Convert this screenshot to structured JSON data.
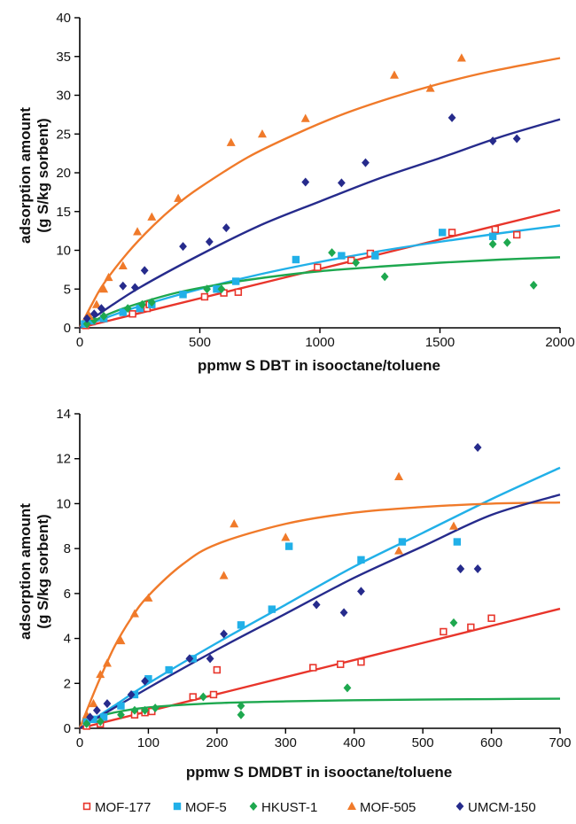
{
  "series_styles": [
    {
      "name": "MOF-177",
      "marker": "square-open",
      "color": "#e8352b"
    },
    {
      "name": "MOF-5",
      "marker": "square",
      "color": "#21b0e8"
    },
    {
      "name": "HKUST-1",
      "marker": "diamond",
      "color": "#1ea84f"
    },
    {
      "name": "MOF-505",
      "marker": "triangle",
      "color": "#f07a2a"
    },
    {
      "name": "UMCM-150",
      "marker": "diamond",
      "color": "#262b8c"
    }
  ],
  "chart_data": [
    {
      "type": "scatter",
      "title": "",
      "xlabel": "ppmw S DBT in isooctane/toluene",
      "ylabel": [
        "adsorption amount",
        "(g S/kg sorbent)"
      ],
      "xlim": [
        0,
        2000
      ],
      "ylim": [
        0,
        40
      ],
      "xticks": [
        0,
        500,
        1000,
        1500,
        2000
      ],
      "yticks": [
        0,
        5,
        10,
        15,
        20,
        25,
        30,
        35,
        40
      ],
      "grid": false,
      "series": [
        {
          "name": "MOF-177",
          "points": [
            [
              25,
              0.3
            ],
            [
              50,
              0.8
            ],
            [
              100,
              1.2
            ],
            [
              220,
              1.8
            ],
            [
              280,
              2.5
            ],
            [
              290,
              3
            ],
            [
              520,
              4
            ],
            [
              600,
              4.5
            ],
            [
              660,
              4.6
            ],
            [
              990,
              7.8
            ],
            [
              1130,
              8.7
            ],
            [
              1210,
              9.6
            ],
            [
              1550,
              12.3
            ],
            [
              1730,
              12.7
            ],
            [
              1820,
              12
            ]
          ],
          "fit": [
            [
              0,
              0
            ],
            [
              500,
              3.8
            ],
            [
              1000,
              7.6
            ],
            [
              1500,
              11.4
            ],
            [
              2000,
              15.2
            ]
          ]
        },
        {
          "name": "MOF-5",
          "points": [
            [
              20,
              0.5
            ],
            [
              50,
              0.9
            ],
            [
              100,
              1.2
            ],
            [
              180,
              2
            ],
            [
              250,
              2.5
            ],
            [
              300,
              3
            ],
            [
              430,
              4.3
            ],
            [
              570,
              5
            ],
            [
              650,
              6
            ],
            [
              900,
              8.8
            ],
            [
              1090,
              9.3
            ],
            [
              1230,
              9.3
            ],
            [
              1510,
              12.3
            ],
            [
              1720,
              11.8
            ]
          ],
          "fit": [
            [
              0,
              0
            ],
            [
              100,
              1.2
            ],
            [
              250,
              2.8
            ],
            [
              500,
              5
            ],
            [
              750,
              6.9
            ],
            [
              1000,
              8.5
            ],
            [
              1250,
              9.9
            ],
            [
              1500,
              11.1
            ],
            [
              1750,
              12.2
            ],
            [
              2000,
              13.2
            ]
          ]
        },
        {
          "name": "HKUST-1",
          "points": [
            [
              30,
              0.5
            ],
            [
              60,
              1
            ],
            [
              100,
              1.5
            ],
            [
              200,
              2.5
            ],
            [
              260,
              3
            ],
            [
              300,
              3.3
            ],
            [
              530,
              5
            ],
            [
              590,
              5
            ],
            [
              1050,
              9.7
            ],
            [
              1150,
              8.4
            ],
            [
              1270,
              6.6
            ],
            [
              1720,
              10.8
            ],
            [
              1780,
              11
            ],
            [
              1890,
              5.5
            ]
          ],
          "fit": [
            [
              0,
              0
            ],
            [
              100,
              1.5
            ],
            [
              200,
              2.7
            ],
            [
              400,
              4.5
            ],
            [
              600,
              5.7
            ],
            [
              800,
              6.6
            ],
            [
              1000,
              7.3
            ],
            [
              1250,
              7.9
            ],
            [
              1500,
              8.4
            ],
            [
              1750,
              8.8
            ],
            [
              2000,
              9.1
            ]
          ]
        },
        {
          "name": "MOF-505",
          "points": [
            [
              40,
              1.5
            ],
            [
              70,
              3
            ],
            [
              100,
              5
            ],
            [
              120,
              6.5
            ],
            [
              180,
              8
            ],
            [
              240,
              12.4
            ],
            [
              300,
              14.3
            ],
            [
              410,
              16.7
            ],
            [
              630,
              23.9
            ],
            [
              760,
              25
            ],
            [
              940,
              27
            ],
            [
              1310,
              32.6
            ],
            [
              1460,
              30.9
            ],
            [
              1590,
              34.8
            ]
          ],
          "fit": [
            [
              0,
              0
            ],
            [
              50,
              3
            ],
            [
              100,
              5.7
            ],
            [
              200,
              9.7
            ],
            [
              300,
              13
            ],
            [
              400,
              15.8
            ],
            [
              500,
              18.1
            ],
            [
              700,
              22
            ],
            [
              900,
              25
            ],
            [
              1100,
              27.6
            ],
            [
              1300,
              29.7
            ],
            [
              1500,
              31.5
            ],
            [
              1700,
              33
            ],
            [
              2000,
              34.8
            ]
          ]
        },
        {
          "name": "UMCM-150",
          "points": [
            [
              30,
              1.2
            ],
            [
              60,
              1.8
            ],
            [
              90,
              2.5
            ],
            [
              180,
              5.4
            ],
            [
              230,
              5.2
            ],
            [
              270,
              7.4
            ],
            [
              430,
              10.5
            ],
            [
              540,
              11.1
            ],
            [
              610,
              12.9
            ],
            [
              940,
              18.8
            ],
            [
              1090,
              18.7
            ],
            [
              1190,
              21.3
            ],
            [
              1550,
              27.1
            ],
            [
              1720,
              24.1
            ],
            [
              1820,
              24.4
            ]
          ],
          "fit": [
            [
              0,
              0
            ],
            [
              100,
              2.2
            ],
            [
              250,
              5.2
            ],
            [
              500,
              9.4
            ],
            [
              750,
              13.2
            ],
            [
              1000,
              16.3
            ],
            [
              1250,
              19.3
            ],
            [
              1500,
              21.9
            ],
            [
              1750,
              24.6
            ],
            [
              2000,
              26.9
            ]
          ]
        }
      ]
    },
    {
      "type": "scatter",
      "title": "",
      "xlabel": "ppmw S DMDBT in isooctane/toluene",
      "ylabel": [
        "adsorption amount",
        "(g S/kg sorbent)"
      ],
      "xlim": [
        0,
        700
      ],
      "ylim": [
        0,
        14
      ],
      "xticks": [
        0,
        100,
        200,
        300,
        400,
        500,
        600,
        700
      ],
      "yticks": [
        0,
        2,
        4,
        6,
        8,
        10,
        12,
        14
      ],
      "grid": false,
      "series": [
        {
          "name": "MOF-177",
          "points": [
            [
              10,
              0.1
            ],
            [
              30,
              0.2
            ],
            [
              80,
              0.6
            ],
            [
              95,
              0.7
            ],
            [
              105,
              0.75
            ],
            [
              165,
              1.4
            ],
            [
              195,
              1.5
            ],
            [
              200,
              2.6
            ],
            [
              340,
              2.7
            ],
            [
              380,
              2.85
            ],
            [
              410,
              2.95
            ],
            [
              530,
              4.3
            ],
            [
              570,
              4.5
            ],
            [
              600,
              4.9
            ]
          ],
          "fit": [
            [
              0,
              0
            ],
            [
              100,
              0.76
            ],
            [
              200,
              1.52
            ],
            [
              300,
              2.28
            ],
            [
              400,
              3.04
            ],
            [
              500,
              3.8
            ],
            [
              600,
              4.56
            ],
            [
              700,
              5.32
            ]
          ]
        },
        {
          "name": "MOF-5",
          "points": [
            [
              10,
              0.3
            ],
            [
              20,
              0.4
            ],
            [
              35,
              0.5
            ],
            [
              60,
              1
            ],
            [
              80,
              1.5
            ],
            [
              100,
              2.2
            ],
            [
              130,
              2.6
            ],
            [
              165,
              3.1
            ],
            [
              235,
              4.6
            ],
            [
              280,
              5.3
            ],
            [
              305,
              8.1
            ],
            [
              410,
              7.5
            ],
            [
              470,
              8.3
            ],
            [
              550,
              8.3
            ]
          ],
          "fit": [
            [
              0,
              0
            ],
            [
              50,
              1
            ],
            [
              100,
              2
            ],
            [
              200,
              3.8
            ],
            [
              300,
              5.5
            ],
            [
              400,
              7.2
            ],
            [
              500,
              8.7
            ],
            [
              600,
              10.2
            ],
            [
              700,
              11.6
            ]
          ]
        },
        {
          "name": "HKUST-1",
          "points": [
            [
              10,
              0.2
            ],
            [
              30,
              0.3
            ],
            [
              60,
              0.6
            ],
            [
              80,
              0.8
            ],
            [
              95,
              0.8
            ],
            [
              110,
              0.9
            ],
            [
              180,
              1.4
            ],
            [
              235,
              0.6
            ],
            [
              235,
              1
            ],
            [
              390,
              1.8
            ],
            [
              545,
              4.7
            ]
          ],
          "fit": [
            [
              0,
              0
            ],
            [
              25,
              0.45
            ],
            [
              50,
              0.7
            ],
            [
              100,
              0.93
            ],
            [
              200,
              1.12
            ],
            [
              300,
              1.2
            ],
            [
              400,
              1.25
            ],
            [
              500,
              1.28
            ],
            [
              600,
              1.3
            ],
            [
              700,
              1.32
            ]
          ]
        },
        {
          "name": "MOF-505",
          "points": [
            [
              10,
              0.6
            ],
            [
              20,
              1.1
            ],
            [
              30,
              2.4
            ],
            [
              40,
              2.9
            ],
            [
              60,
              3.9
            ],
            [
              80,
              5.1
            ],
            [
              100,
              5.8
            ],
            [
              210,
              6.8
            ],
            [
              225,
              9.1
            ],
            [
              300,
              8.5
            ],
            [
              465,
              7.9
            ],
            [
              465,
              11.2
            ],
            [
              545,
              9
            ]
          ],
          "fit": [
            [
              0,
              0
            ],
            [
              25,
              1.9
            ],
            [
              50,
              3.6
            ],
            [
              75,
              4.9
            ],
            [
              100,
              5.9
            ],
            [
              150,
              7.3
            ],
            [
              200,
              8.2
            ],
            [
              300,
              9.1
            ],
            [
              400,
              9.6
            ],
            [
              500,
              9.85
            ],
            [
              600,
              10
            ],
            [
              700,
              10.05
            ]
          ]
        },
        {
          "name": "UMCM-150",
          "points": [
            [
              15,
              0.5
            ],
            [
              25,
              0.8
            ],
            [
              40,
              1.1
            ],
            [
              75,
              1.5
            ],
            [
              95,
              2.1
            ],
            [
              160,
              3.1
            ],
            [
              190,
              3.1
            ],
            [
              210,
              4.2
            ],
            [
              345,
              5.5
            ],
            [
              385,
              5.15
            ],
            [
              410,
              6.1
            ],
            [
              555,
              7.1
            ],
            [
              555,
              7.1
            ],
            [
              580,
              12.5
            ],
            [
              580,
              7.1
            ]
          ],
          "fit": [
            [
              0,
              0
            ],
            [
              100,
              1.8
            ],
            [
              200,
              3.5
            ],
            [
              300,
              5.1
            ],
            [
              400,
              6.7
            ],
            [
              500,
              8.1
            ],
            [
              600,
              9.5
            ],
            [
              700,
              10.4
            ]
          ]
        }
      ]
    }
  ]
}
